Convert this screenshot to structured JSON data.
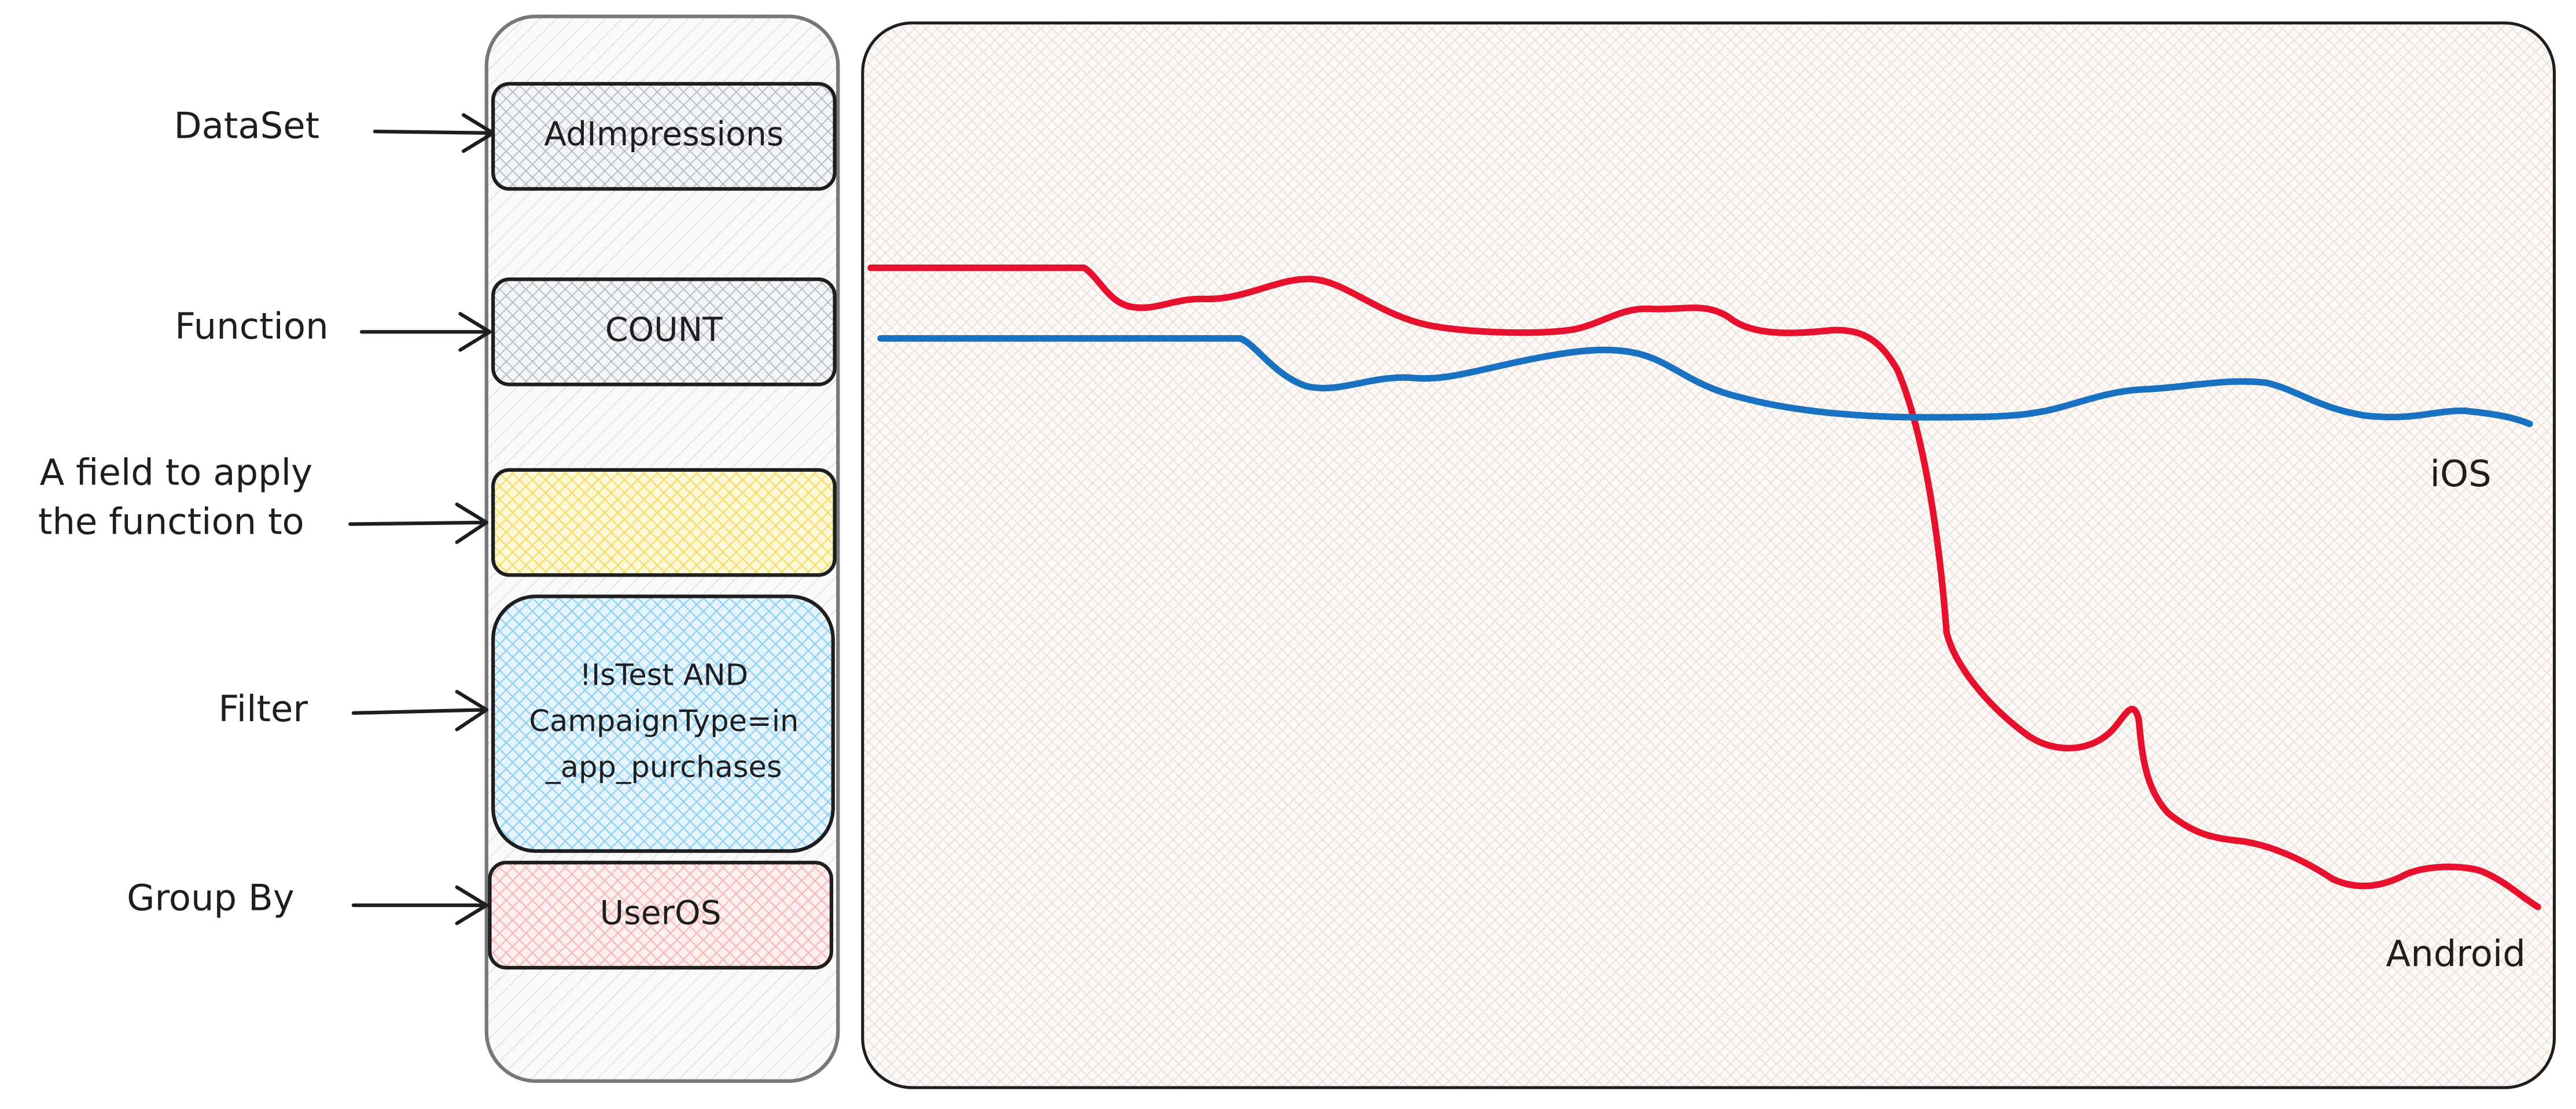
{
  "fields": [
    {
      "label": [
        "DataSet"
      ],
      "value": [
        "AdImpressions"
      ]
    },
    {
      "label": [
        "Function"
      ],
      "value": [
        "COUNT"
      ]
    },
    {
      "label": [
        "A field to apply",
        "the function to"
      ]
    },
    {
      "label": [
        "Filter"
      ],
      "value": [
        "!IsTest AND",
        "CampaignType=in",
        "_app_purchases"
      ]
    },
    {
      "label": [
        "Group By"
      ],
      "value": [
        "UserOS"
      ]
    }
  ],
  "series_labels": [
    "iOS",
    "Android"
  ]
}
